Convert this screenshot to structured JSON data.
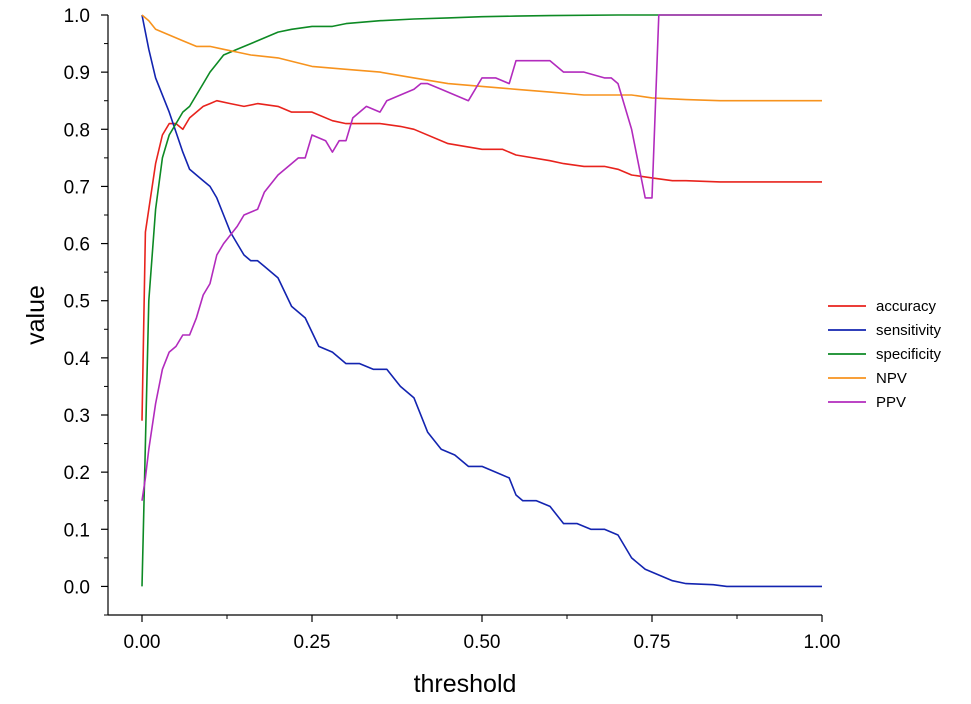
{
  "chart_data": {
    "type": "line",
    "title": "",
    "xlabel": "threshold",
    "ylabel": "value",
    "xlim": [
      -0.05,
      1.0
    ],
    "ylim": [
      -0.05,
      1.0
    ],
    "grid": false,
    "legend_position": "right",
    "x_ticks": [
      "0.00",
      "0.25",
      "0.50",
      "0.75",
      "1.00"
    ],
    "x_tick_values": [
      0,
      0.25,
      0.5,
      0.75,
      1.0
    ],
    "y_ticks": [
      "0.0",
      "0.1",
      "0.2",
      "0.3",
      "0.4",
      "0.5",
      "0.6",
      "0.7",
      "0.8",
      "0.9",
      "1.0"
    ],
    "y_tick_values": [
      0.0,
      0.1,
      0.2,
      0.3,
      0.4,
      0.5,
      0.6,
      0.7,
      0.8,
      0.9,
      1.0
    ],
    "series": [
      {
        "name": "accuracy",
        "color": "#e8231d",
        "x": [
          0,
          0.005,
          0.01,
          0.02,
          0.03,
          0.04,
          0.05,
          0.06,
          0.07,
          0.08,
          0.09,
          0.1,
          0.11,
          0.13,
          0.15,
          0.17,
          0.2,
          0.22,
          0.25,
          0.28,
          0.3,
          0.33,
          0.35,
          0.38,
          0.4,
          0.45,
          0.5,
          0.53,
          0.55,
          0.6,
          0.62,
          0.65,
          0.68,
          0.7,
          0.72,
          0.75,
          0.78,
          0.8,
          0.85,
          0.9,
          1.0
        ],
        "y": [
          0.29,
          0.62,
          0.66,
          0.74,
          0.79,
          0.81,
          0.81,
          0.8,
          0.82,
          0.83,
          0.84,
          0.845,
          0.85,
          0.845,
          0.84,
          0.845,
          0.84,
          0.83,
          0.83,
          0.815,
          0.81,
          0.81,
          0.81,
          0.805,
          0.8,
          0.775,
          0.765,
          0.765,
          0.755,
          0.745,
          0.74,
          0.735,
          0.735,
          0.73,
          0.72,
          0.715,
          0.71,
          0.71,
          0.708,
          0.708,
          0.708
        ]
      },
      {
        "name": "sensitivity",
        "color": "#1324b0",
        "x": [
          0,
          0.01,
          0.02,
          0.04,
          0.06,
          0.07,
          0.08,
          0.09,
          0.1,
          0.11,
          0.12,
          0.13,
          0.14,
          0.15,
          0.16,
          0.17,
          0.18,
          0.2,
          0.22,
          0.24,
          0.26,
          0.28,
          0.3,
          0.32,
          0.34,
          0.36,
          0.38,
          0.4,
          0.42,
          0.44,
          0.46,
          0.48,
          0.5,
          0.52,
          0.54,
          0.55,
          0.56,
          0.58,
          0.6,
          0.62,
          0.64,
          0.66,
          0.68,
          0.7,
          0.72,
          0.74,
          0.76,
          0.78,
          0.8,
          0.84,
          0.86,
          0.9,
          1.0
        ],
        "y": [
          1.0,
          0.94,
          0.89,
          0.83,
          0.76,
          0.73,
          0.72,
          0.71,
          0.7,
          0.68,
          0.65,
          0.62,
          0.6,
          0.58,
          0.57,
          0.57,
          0.56,
          0.54,
          0.49,
          0.47,
          0.42,
          0.41,
          0.39,
          0.39,
          0.38,
          0.38,
          0.35,
          0.33,
          0.27,
          0.24,
          0.23,
          0.21,
          0.21,
          0.2,
          0.19,
          0.16,
          0.15,
          0.15,
          0.14,
          0.11,
          0.11,
          0.1,
          0.1,
          0.09,
          0.05,
          0.03,
          0.02,
          0.01,
          0.005,
          0.003,
          0.0,
          0.0,
          0.0
        ]
      },
      {
        "name": "specificity",
        "color": "#0d8a24",
        "x": [
          0,
          0.005,
          0.01,
          0.02,
          0.03,
          0.04,
          0.05,
          0.06,
          0.07,
          0.08,
          0.09,
          0.1,
          0.11,
          0.12,
          0.14,
          0.16,
          0.18,
          0.2,
          0.22,
          0.25,
          0.28,
          0.3,
          0.35,
          0.4,
          0.45,
          0.5,
          0.55,
          0.6,
          0.7,
          0.75,
          0.76,
          0.8,
          0.9,
          1.0
        ],
        "y": [
          0.0,
          0.25,
          0.5,
          0.66,
          0.75,
          0.79,
          0.81,
          0.83,
          0.84,
          0.86,
          0.88,
          0.9,
          0.915,
          0.93,
          0.94,
          0.95,
          0.96,
          0.97,
          0.975,
          0.98,
          0.98,
          0.985,
          0.99,
          0.993,
          0.995,
          0.997,
          0.998,
          0.999,
          1.0,
          1.0,
          1.0,
          1.0,
          1.0,
          1.0
        ]
      },
      {
        "name": "NPV",
        "color": "#f7931e",
        "x": [
          0,
          0.01,
          0.02,
          0.04,
          0.06,
          0.08,
          0.1,
          0.12,
          0.14,
          0.16,
          0.2,
          0.25,
          0.3,
          0.35,
          0.4,
          0.45,
          0.5,
          0.55,
          0.6,
          0.65,
          0.7,
          0.72,
          0.75,
          0.8,
          0.85,
          0.9,
          1.0
        ],
        "y": [
          1.0,
          0.99,
          0.975,
          0.965,
          0.955,
          0.945,
          0.945,
          0.94,
          0.935,
          0.93,
          0.925,
          0.91,
          0.905,
          0.9,
          0.89,
          0.88,
          0.875,
          0.87,
          0.865,
          0.86,
          0.86,
          0.86,
          0.855,
          0.852,
          0.85,
          0.85,
          0.85
        ]
      },
      {
        "name": "PPV",
        "color": "#b22bbd",
        "x": [
          0,
          0.005,
          0.01,
          0.02,
          0.03,
          0.04,
          0.05,
          0.06,
          0.07,
          0.08,
          0.09,
          0.1,
          0.11,
          0.12,
          0.14,
          0.15,
          0.17,
          0.18,
          0.2,
          0.22,
          0.23,
          0.24,
          0.25,
          0.27,
          0.28,
          0.29,
          0.3,
          0.31,
          0.33,
          0.35,
          0.36,
          0.38,
          0.4,
          0.41,
          0.42,
          0.44,
          0.46,
          0.48,
          0.5,
          0.52,
          0.54,
          0.55,
          0.58,
          0.6,
          0.62,
          0.65,
          0.68,
          0.69,
          0.7,
          0.72,
          0.74,
          0.75,
          0.76,
          0.8,
          0.9,
          1.0
        ],
        "y": [
          0.15,
          0.19,
          0.24,
          0.32,
          0.38,
          0.41,
          0.42,
          0.44,
          0.44,
          0.47,
          0.51,
          0.53,
          0.58,
          0.6,
          0.63,
          0.65,
          0.66,
          0.69,
          0.72,
          0.74,
          0.75,
          0.75,
          0.79,
          0.78,
          0.76,
          0.78,
          0.78,
          0.82,
          0.84,
          0.83,
          0.85,
          0.86,
          0.87,
          0.88,
          0.88,
          0.87,
          0.86,
          0.85,
          0.89,
          0.89,
          0.88,
          0.92,
          0.92,
          0.92,
          0.9,
          0.9,
          0.89,
          0.89,
          0.88,
          0.8,
          0.68,
          0.68,
          1.0,
          1.0,
          1.0,
          1.0
        ]
      }
    ]
  }
}
